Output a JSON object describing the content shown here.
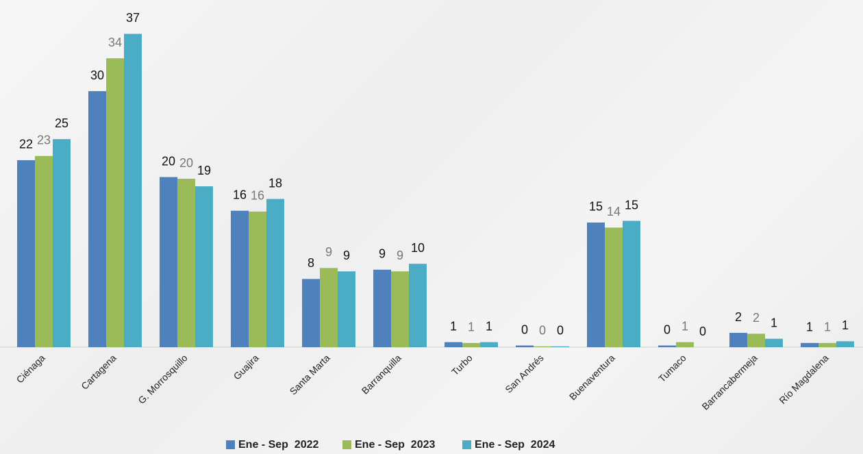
{
  "chart_data": {
    "type": "bar",
    "categories": [
      "Ciénaga",
      "Cartagena",
      "G. Morrosquillo",
      "Guajira",
      "Santa Marta",
      "Barranquilla",
      "Turbo",
      "San Andrés",
      "Buenaventura",
      "Tumaco",
      "Barrancabermeja",
      "Río Magdalena"
    ],
    "series": [
      {
        "name": "Ene - Sep  2022",
        "color": "#4f81bd",
        "label_color": "#111111",
        "values": [
          22.2,
          30.4,
          20.2,
          16.2,
          8.1,
          9.2,
          0.6,
          0.2,
          14.8,
          0.2,
          1.7,
          0.5
        ],
        "value_labels": [
          "22",
          "30",
          "20",
          "16",
          "8",
          "9",
          "1",
          "0",
          "15",
          "0",
          "2",
          "1"
        ]
      },
      {
        "name": "Ene - Sep  2023",
        "color": "#9bbb59",
        "label_color": "#777777",
        "values": [
          22.7,
          34.3,
          20.0,
          16.1,
          9.4,
          9.0,
          0.5,
          0.1,
          14.2,
          0.6,
          1.6,
          0.5
        ],
        "value_labels": [
          "23",
          "34",
          "20",
          "16",
          "9",
          "9",
          "1",
          "0",
          "14",
          "1",
          "2",
          "1"
        ]
      },
      {
        "name": "Ene - Sep  2024",
        "color": "#4bacc6",
        "label_color": "#111111",
        "values": [
          24.7,
          37.2,
          19.1,
          17.6,
          9.0,
          9.9,
          0.6,
          0.1,
          15.0,
          0,
          1.0,
          0.7
        ],
        "value_labels": [
          "25",
          "37",
          "19",
          "18",
          "9",
          "10",
          "1",
          "0",
          "15",
          "0",
          "1",
          "1"
        ]
      }
    ],
    "ylim": [
      0,
      40
    ],
    "grid": false,
    "legend": "bottom"
  }
}
